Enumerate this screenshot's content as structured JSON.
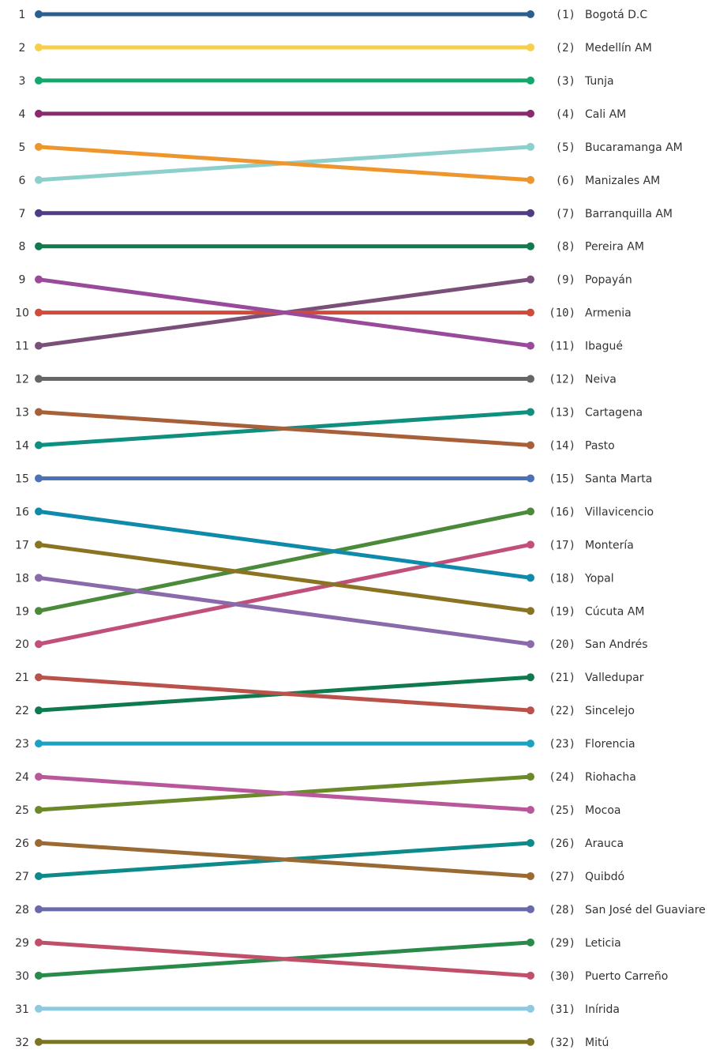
{
  "chart_data": {
    "type": "line",
    "subtype": "slope-ranking",
    "left_ranks": [
      "1",
      "2",
      "3",
      "4",
      "5",
      "6",
      "7",
      "8",
      "9",
      "10",
      "11",
      "12",
      "13",
      "14",
      "15",
      "16",
      "17",
      "18",
      "19",
      "20",
      "21",
      "22",
      "23",
      "24",
      "25",
      "26",
      "27",
      "28",
      "29",
      "30",
      "31",
      "32"
    ],
    "series": [
      {
        "name": "Bogotá D.C",
        "label": "(1)",
        "values": [
          1,
          1
        ],
        "color": "#2a5f8f"
      },
      {
        "name": "Medellín AM",
        "label": "(2)",
        "values": [
          2,
          2
        ],
        "color": "#f7cf4a"
      },
      {
        "name": "Tunja",
        "label": "(3)",
        "values": [
          3,
          3
        ],
        "color": "#13a86b"
      },
      {
        "name": "Cali AM",
        "label": "(4)",
        "values": [
          4,
          4
        ],
        "color": "#8a2a6c"
      },
      {
        "name": "Bucaramanga AM",
        "label": "(5)",
        "values": [
          6,
          5
        ],
        "color": "#8dcfca"
      },
      {
        "name": "Manizales AM",
        "label": "(6)",
        "values": [
          5,
          6
        ],
        "color": "#ee962e"
      },
      {
        "name": "Barranquilla AM",
        "label": "(7)",
        "values": [
          7,
          7
        ],
        "color": "#4f3b86"
      },
      {
        "name": "Pereira AM",
        "label": "(8)",
        "values": [
          8,
          8
        ],
        "color": "#0f7a4e"
      },
      {
        "name": "Popayán",
        "label": "(9)",
        "values": [
          11,
          9
        ],
        "color": "#7a4f7a"
      },
      {
        "name": "Armenia",
        "label": "(10)",
        "values": [
          10,
          10
        ],
        "color": "#d24b3a"
      },
      {
        "name": "Ibagué",
        "label": "(11)",
        "values": [
          9,
          11
        ],
        "color": "#9a4a9a"
      },
      {
        "name": "Neiva",
        "label": "(12)",
        "values": [
          12,
          12
        ],
        "color": "#666666"
      },
      {
        "name": "Cartagena",
        "label": "(13)",
        "values": [
          14,
          13
        ],
        "color": "#0f8f7f"
      },
      {
        "name": "Pasto",
        "label": "(14)",
        "values": [
          13,
          14
        ],
        "color": "#a8603a"
      },
      {
        "name": "Santa Marta",
        "label": "(15)",
        "values": [
          15,
          15
        ],
        "color": "#4a72b8"
      },
      {
        "name": "Villavicencio",
        "label": "(16)",
        "values": [
          19,
          16
        ],
        "color": "#4a8a3a"
      },
      {
        "name": "Montería",
        "label": "(17)",
        "values": [
          20,
          17
        ],
        "color": "#c0507a"
      },
      {
        "name": "Yopal",
        "label": "(18)",
        "values": [
          16,
          18
        ],
        "color": "#0f8aaa"
      },
      {
        "name": "Cúcuta AM",
        "label": "(19)",
        "values": [
          17,
          19
        ],
        "color": "#8a7424"
      },
      {
        "name": "San Andrés",
        "label": "(20)",
        "values": [
          18,
          20
        ],
        "color": "#8a6aaa"
      },
      {
        "name": "Valledupar",
        "label": "(21)",
        "values": [
          22,
          21
        ],
        "color": "#0f7a4e"
      },
      {
        "name": "Sincelejo",
        "label": "(22)",
        "values": [
          21,
          22
        ],
        "color": "#b8524a"
      },
      {
        "name": "Florencia",
        "label": "(23)",
        "values": [
          23,
          23
        ],
        "color": "#1aa2c4"
      },
      {
        "name": "Riohacha",
        "label": "(24)",
        "values": [
          25,
          24
        ],
        "color": "#6a8a2a"
      },
      {
        "name": "Mocoa",
        "label": "(25)",
        "values": [
          24,
          25
        ],
        "color": "#b8589a"
      },
      {
        "name": "Arauca",
        "label": "(26)",
        "values": [
          27,
          26
        ],
        "color": "#0f8a8a"
      },
      {
        "name": "Quibdó",
        "label": "(27)",
        "values": [
          26,
          27
        ],
        "color": "#9a6a34"
      },
      {
        "name": "San José del Guaviare",
        "label": "(28)",
        "values": [
          28,
          28
        ],
        "color": "#6a6aaa"
      },
      {
        "name": "Leticia",
        "label": "(29)",
        "values": [
          30,
          29
        ],
        "color": "#2a8a4a"
      },
      {
        "name": "Puerto Carreño",
        "label": "(30)",
        "values": [
          29,
          30
        ],
        "color": "#c0506a"
      },
      {
        "name": "Inírida",
        "label": "(31)",
        "values": [
          31,
          31
        ],
        "color": "#8fc9e0"
      },
      {
        "name": "Mitú",
        "label": "(32)",
        "values": [
          32,
          32
        ],
        "color": "#7a7424"
      }
    ]
  }
}
